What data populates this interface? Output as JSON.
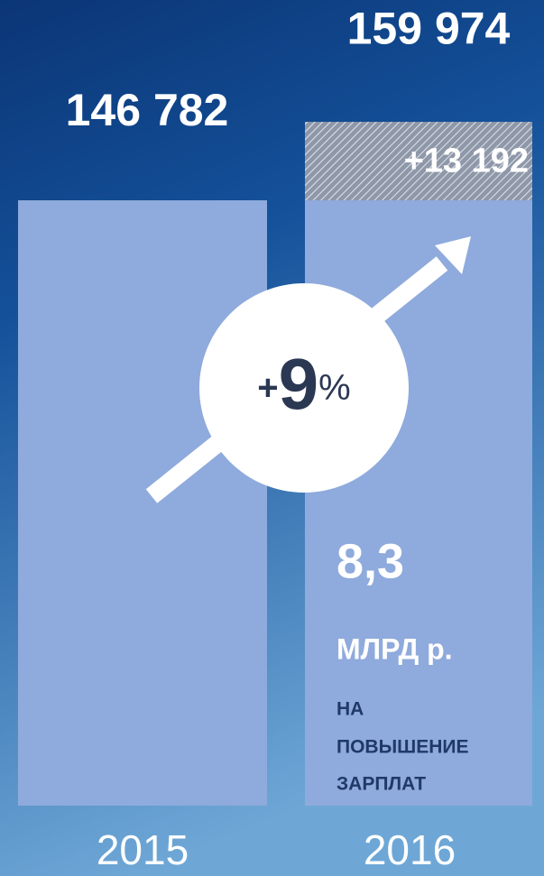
{
  "chart_data": {
    "type": "bar",
    "categories": [
      "2015",
      "2016"
    ],
    "series": [
      {
        "color": "#8faadc",
        "values": [
          146782,
          146782
        ]
      },
      {
        "color": "#9aa6b8",
        "values": [
          null,
          13192
        ],
        "value_labels": [
          null,
          "+13 192"
        ]
      }
    ],
    "totals": [
      146782,
      159974
    ],
    "total_labels": [
      "146 782",
      "159 974"
    ],
    "ylim": [
      45000,
      175000
    ],
    "growth": {
      "sign": "+",
      "value": 9,
      "unit": "%"
    },
    "note": {
      "amount": "8,3",
      "unit": "МЛРД р.",
      "lines": [
        "НА",
        "ПОВЫШЕНИЕ",
        "ЗАРПЛАТ"
      ]
    }
  }
}
